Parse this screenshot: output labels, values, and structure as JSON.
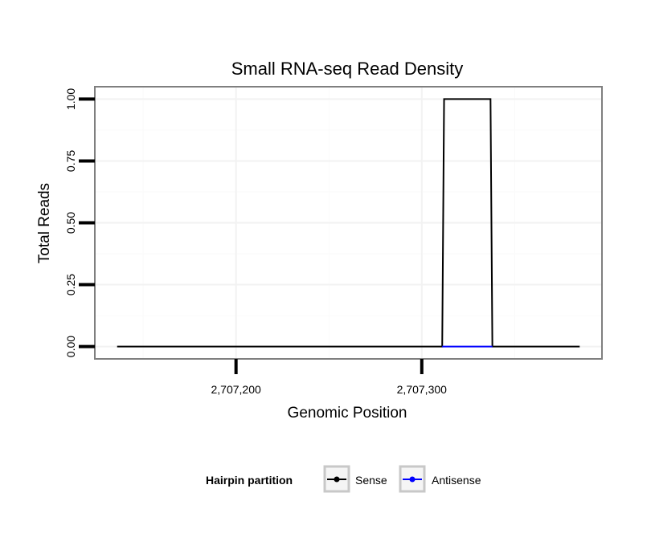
{
  "chart_data": {
    "type": "line",
    "title": "Small RNA-seq Read Density",
    "xlabel": "Genomic Position",
    "ylabel": "Total Reads",
    "xlim": [
      2707124,
      2707397
    ],
    "ylim": [
      -0.05,
      1.05
    ],
    "x_ticks": [
      2707200,
      2707300
    ],
    "x_tick_labels": [
      "2,707,200",
      "2,707,300"
    ],
    "y_ticks": [
      0,
      0.25,
      0.5,
      0.75,
      1
    ],
    "y_tick_labels": [
      "0.00",
      "0.25",
      "0.50",
      "0.75",
      "1.00"
    ],
    "grid": true,
    "legend": {
      "title": "Hairpin partition",
      "position": "bottom"
    },
    "series": [
      {
        "name": "Sense",
        "color": "#000000",
        "x": [
          2707136,
          2707311,
          2707312,
          2707337,
          2707338,
          2707385
        ],
        "y": [
          0,
          0,
          1,
          1,
          0,
          0
        ]
      },
      {
        "name": "Antisense",
        "color": "#0000ff",
        "x": [
          2707311,
          2707338
        ],
        "y": [
          0,
          0
        ]
      }
    ]
  }
}
